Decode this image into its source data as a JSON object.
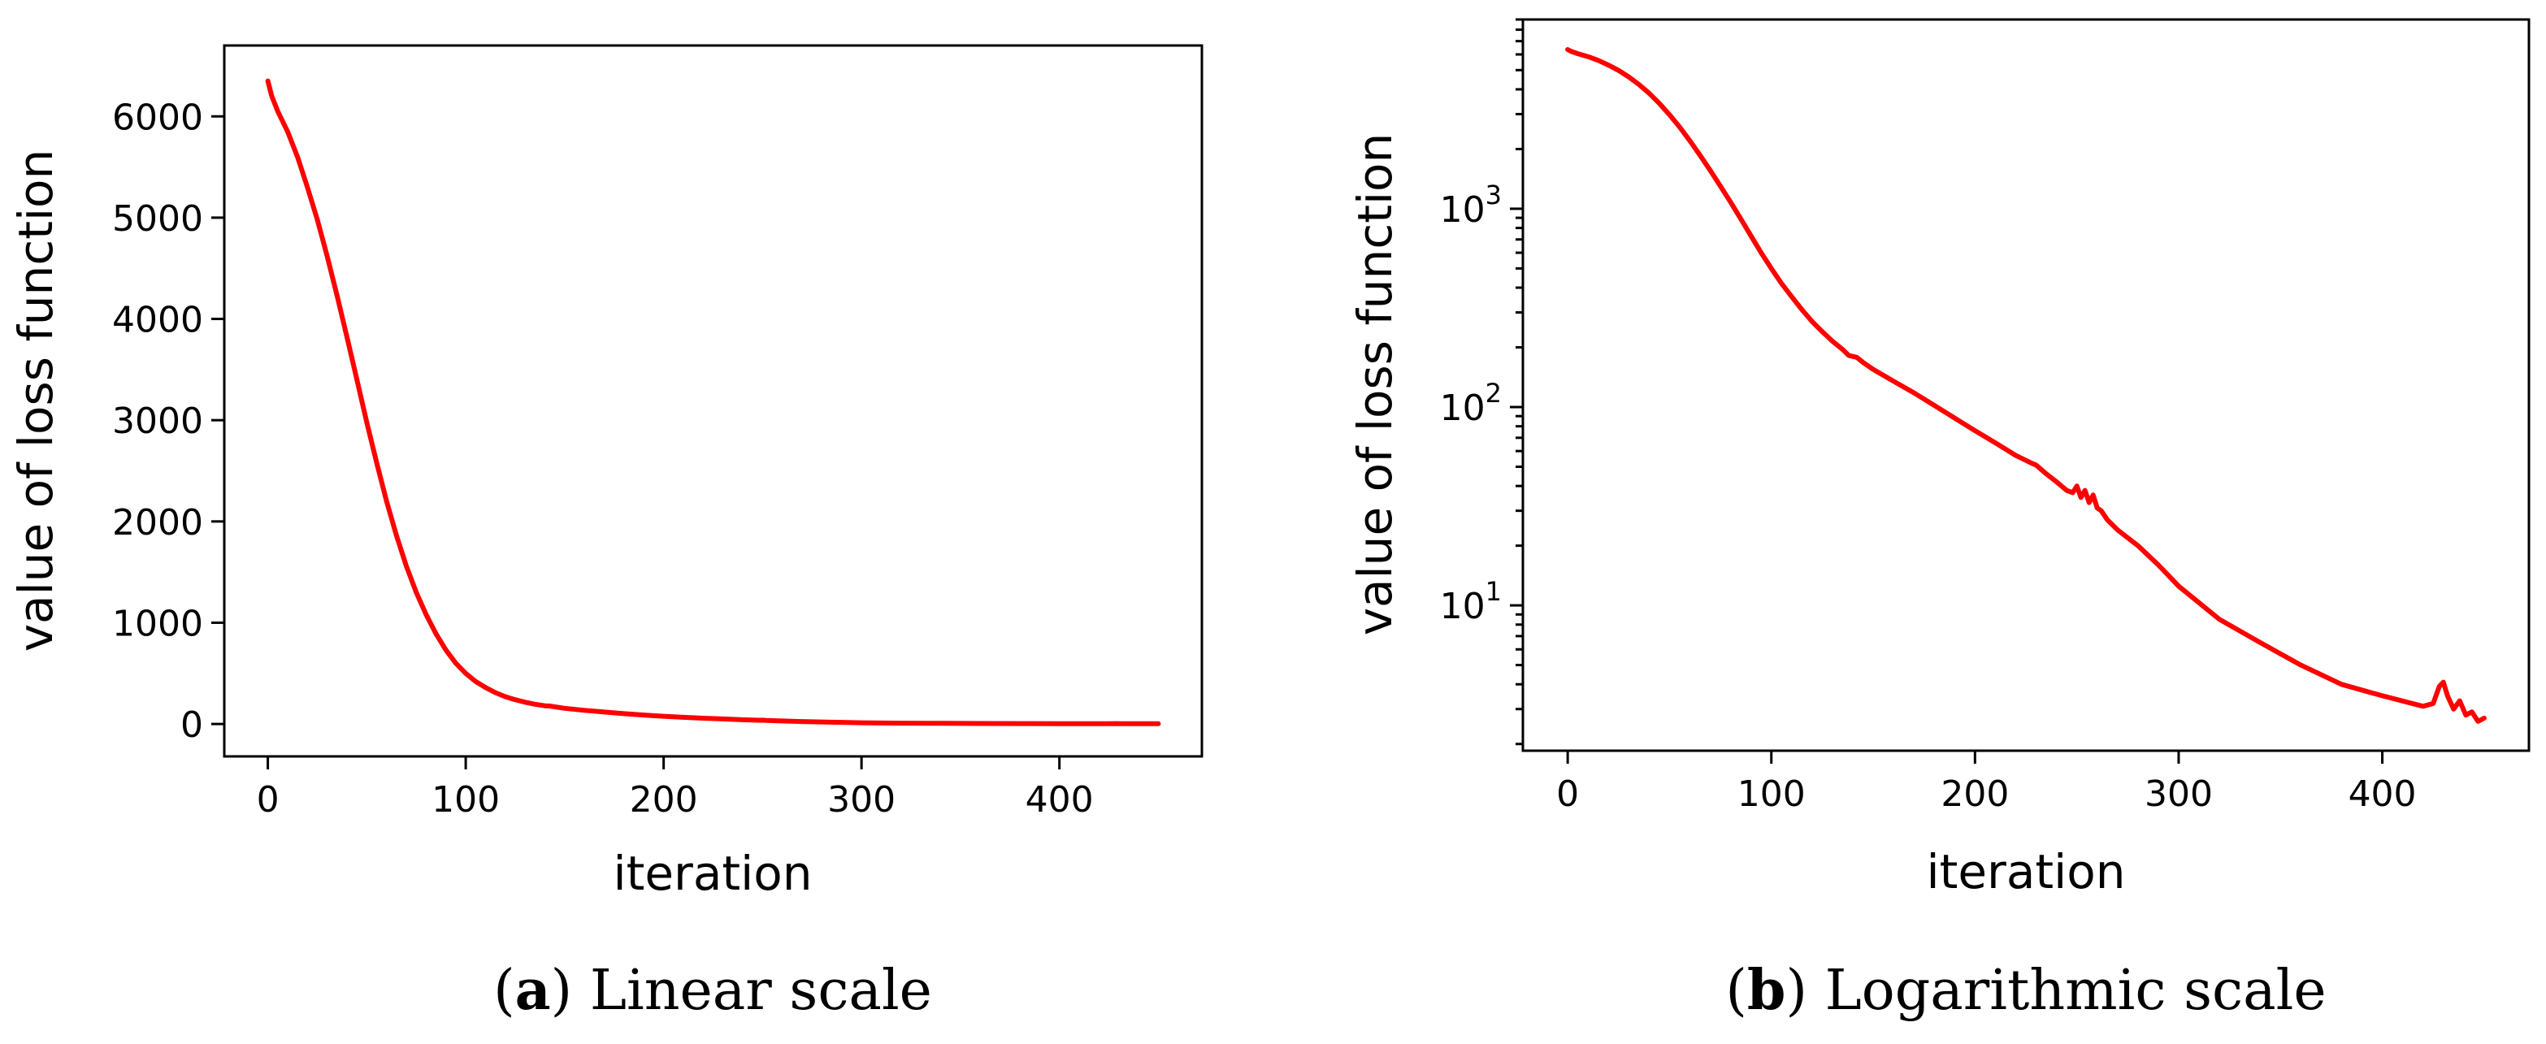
{
  "chart_data": [
    {
      "type": "line",
      "scale": "linear",
      "xlabel": "iteration",
      "ylabel": "value of loss function",
      "xlim": [
        -22,
        472
      ],
      "ylim": [
        -320,
        6700
      ],
      "xticks": [
        0,
        100,
        200,
        300,
        400
      ],
      "xtick_labels": [
        "0",
        "100",
        "200",
        "300",
        "400"
      ],
      "yticks": [
        0,
        1000,
        2000,
        3000,
        4000,
        5000,
        6000
      ],
      "ytick_labels": [
        "0",
        "1000",
        "2000",
        "3000",
        "4000",
        "5000",
        "6000"
      ],
      "grid": false,
      "caption": {
        "tag": "a",
        "text": "Linear scale"
      },
      "series": [
        {
          "name": "loss",
          "color": "#ff0000",
          "x": [
            0,
            2,
            5,
            10,
            15,
            20,
            25,
            30,
            35,
            40,
            45,
            50,
            55,
            60,
            65,
            70,
            75,
            80,
            85,
            90,
            95,
            100,
            105,
            110,
            115,
            120,
            125,
            130,
            135,
            140,
            142,
            150,
            160,
            170,
            180,
            190,
            200,
            210,
            220,
            230,
            240,
            248,
            250,
            252,
            255,
            260,
            270,
            280,
            290,
            300,
            320,
            340,
            360,
            380,
            400,
            420,
            425,
            428,
            432,
            440,
            450
          ],
          "y": [
            6350,
            6200,
            6050,
            5850,
            5600,
            5300,
            4980,
            4620,
            4230,
            3820,
            3400,
            2980,
            2580,
            2200,
            1860,
            1560,
            1300,
            1080,
            890,
            730,
            600,
            500,
            420,
            360,
            310,
            270,
            240,
            215,
            195,
            180,
            178,
            155,
            135,
            118,
            102,
            88,
            76,
            66,
            57,
            50,
            42,
            37,
            38,
            35,
            33,
            30,
            24,
            20,
            16,
            12.5,
            8.5,
            6.5,
            5,
            4,
            3.5,
            3.1,
            3.2,
            4.1,
            3.0,
            2.9,
            2.7
          ]
        }
      ]
    },
    {
      "type": "line",
      "scale": "log",
      "xlabel": "iteration",
      "ylabel": "value of loss function",
      "xlim": [
        -22,
        472
      ],
      "ylim": [
        1.85,
        9000
      ],
      "xticks": [
        0,
        100,
        200,
        300,
        400
      ],
      "xtick_labels": [
        "0",
        "100",
        "200",
        "300",
        "400"
      ],
      "yticks": [
        10,
        100,
        1000
      ],
      "ytick_labels": [
        {
          "base": "10",
          "exp": "1"
        },
        {
          "base": "10",
          "exp": "2"
        },
        {
          "base": "10",
          "exp": "3"
        }
      ],
      "grid": false,
      "caption": {
        "tag": "b",
        "text": "Logarithmic scale"
      },
      "series": [
        {
          "name": "loss",
          "color": "#ff0000",
          "x": [
            0,
            2,
            5,
            10,
            15,
            20,
            25,
            30,
            35,
            40,
            45,
            50,
            55,
            60,
            65,
            70,
            75,
            80,
            85,
            90,
            95,
            100,
            105,
            110,
            115,
            120,
            125,
            130,
            135,
            138,
            140,
            142,
            145,
            150,
            160,
            170,
            180,
            190,
            200,
            210,
            220,
            228,
            230,
            235,
            240,
            245,
            248,
            250,
            252,
            254,
            256,
            258,
            260,
            262,
            265,
            270,
            280,
            290,
            300,
            320,
            340,
            360,
            380,
            400,
            420,
            425,
            428,
            430,
            432,
            435,
            438,
            441,
            444,
            447,
            450
          ],
          "y": [
            6350,
            6200,
            6050,
            5850,
            5600,
            5300,
            4980,
            4620,
            4230,
            3820,
            3400,
            2980,
            2580,
            2200,
            1860,
            1560,
            1300,
            1080,
            890,
            730,
            600,
            500,
            420,
            360,
            310,
            270,
            240,
            215,
            195,
            182,
            180,
            178,
            168,
            155,
            135,
            118,
            102,
            88,
            76,
            66,
            57,
            52,
            51,
            46,
            42,
            38,
            37,
            40,
            35,
            38,
            33,
            36,
            31,
            30,
            27,
            24,
            20,
            16,
            12.5,
            8.5,
            6.5,
            5,
            4,
            3.5,
            3.1,
            3.2,
            3.9,
            4.1,
            3.5,
            3.0,
            3.3,
            2.8,
            2.9,
            2.6,
            2.7
          ]
        }
      ]
    }
  ]
}
